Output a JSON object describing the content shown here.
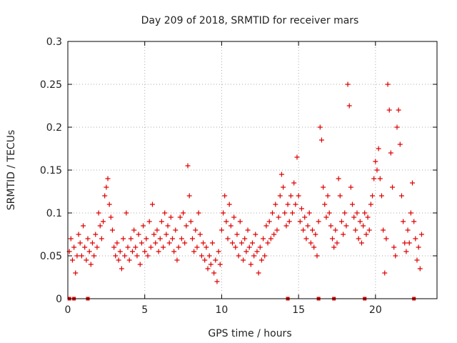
{
  "chart_data": {
    "type": "scatter",
    "title": "Day 209 of 2018, SRMTID for receiver mars",
    "xlabel": "GPS time / hours",
    "ylabel": "SRMTID / TECUs",
    "xlim": [
      0,
      24
    ],
    "ylim": [
      0,
      0.3
    ],
    "x_ticks": [
      0,
      5,
      10,
      15,
      20
    ],
    "x_tick_labels": [
      "0",
      "5",
      "10",
      "15",
      "20"
    ],
    "y_ticks": [
      0,
      0.05,
      0.1,
      0.15,
      0.2,
      0.25,
      0.3
    ],
    "y_tick_labels": [
      "0",
      "0.05",
      "0.1",
      "0.15",
      "0.2",
      "0.25",
      "0.3"
    ],
    "grid": true,
    "marker": "+",
    "series": [
      {
        "name": "SRMTID",
        "color": "#e00000",
        "points": [
          [
            0.1,
            0.055
          ],
          [
            0.2,
            0.07
          ],
          [
            0.3,
            0.045
          ],
          [
            0.4,
            0.06
          ],
          [
            0.5,
            0.03
          ],
          [
            0.6,
            0.05
          ],
          [
            0.7,
            0.075
          ],
          [
            0.8,
            0.065
          ],
          [
            0.9,
            0.05
          ],
          [
            1.0,
            0.085
          ],
          [
            1.1,
            0.06
          ],
          [
            1.2,
            0.045
          ],
          [
            1.3,
            0.07
          ],
          [
            1.4,
            0.055
          ],
          [
            1.5,
            0.04
          ],
          [
            1.6,
            0.065
          ],
          [
            1.7,
            0.05
          ],
          [
            1.8,
            0.075
          ],
          [
            1.9,
            0.06
          ],
          [
            2.0,
            0.1
          ],
          [
            2.1,
            0.085
          ],
          [
            2.2,
            0.07
          ],
          [
            2.3,
            0.09
          ],
          [
            2.4,
            0.12
          ],
          [
            2.5,
            0.13
          ],
          [
            2.6,
            0.14
          ],
          [
            2.7,
            0.11
          ],
          [
            2.8,
            0.095
          ],
          [
            2.9,
            0.08
          ],
          [
            3.0,
            0.06
          ],
          [
            3.1,
            0.05
          ],
          [
            3.2,
            0.065
          ],
          [
            3.3,
            0.045
          ],
          [
            3.4,
            0.055
          ],
          [
            3.5,
            0.035
          ],
          [
            3.6,
            0.07
          ],
          [
            3.7,
            0.05
          ],
          [
            3.8,
            0.1
          ],
          [
            3.9,
            0.06
          ],
          [
            4.0,
            0.045
          ],
          [
            4.1,
            0.07
          ],
          [
            4.2,
            0.055
          ],
          [
            4.3,
            0.08
          ],
          [
            4.4,
            0.06
          ],
          [
            4.5,
            0.05
          ],
          [
            4.6,
            0.075
          ],
          [
            4.7,
            0.04
          ],
          [
            4.8,
            0.065
          ],
          [
            4.9,
            0.085
          ],
          [
            5.0,
            0.055
          ],
          [
            5.1,
            0.07
          ],
          [
            5.2,
            0.05
          ],
          [
            5.3,
            0.09
          ],
          [
            5.4,
            0.06
          ],
          [
            5.5,
            0.11
          ],
          [
            5.6,
            0.075
          ],
          [
            5.7,
            0.065
          ],
          [
            5.8,
            0.08
          ],
          [
            5.9,
            0.055
          ],
          [
            6.0,
            0.07
          ],
          [
            6.1,
            0.09
          ],
          [
            6.2,
            0.06
          ],
          [
            6.3,
            0.1
          ],
          [
            6.4,
            0.075
          ],
          [
            6.5,
            0.085
          ],
          [
            6.6,
            0.065
          ],
          [
            6.7,
            0.095
          ],
          [
            6.8,
            0.07
          ],
          [
            6.9,
            0.055
          ],
          [
            7.0,
            0.08
          ],
          [
            7.1,
            0.045
          ],
          [
            7.2,
            0.06
          ],
          [
            7.3,
            0.095
          ],
          [
            7.4,
            0.07
          ],
          [
            7.5,
            0.1
          ],
          [
            7.6,
            0.065
          ],
          [
            7.7,
            0.085
          ],
          [
            7.8,
            0.155
          ],
          [
            7.9,
            0.12
          ],
          [
            8.0,
            0.09
          ],
          [
            8.1,
            0.07
          ],
          [
            8.2,
            0.055
          ],
          [
            8.3,
            0.08
          ],
          [
            8.4,
            0.06
          ],
          [
            8.5,
            0.1
          ],
          [
            8.6,
            0.075
          ],
          [
            8.7,
            0.05
          ],
          [
            8.8,
            0.065
          ],
          [
            8.9,
            0.045
          ],
          [
            9.0,
            0.06
          ],
          [
            9.1,
            0.035
          ],
          [
            9.2,
            0.05
          ],
          [
            9.3,
            0.04
          ],
          [
            9.4,
            0.065
          ],
          [
            9.5,
            0.03
          ],
          [
            9.6,
            0.045
          ],
          [
            9.7,
            0.02
          ],
          [
            9.8,
            0.055
          ],
          [
            9.9,
            0.04
          ],
          [
            10.0,
            0.08
          ],
          [
            10.1,
            0.1
          ],
          [
            10.2,
            0.12
          ],
          [
            10.3,
            0.09
          ],
          [
            10.4,
            0.07
          ],
          [
            10.5,
            0.11
          ],
          [
            10.6,
            0.085
          ],
          [
            10.7,
            0.065
          ],
          [
            10.8,
            0.095
          ],
          [
            10.9,
            0.06
          ],
          [
            11.0,
            0.075
          ],
          [
            11.1,
            0.05
          ],
          [
            11.2,
            0.09
          ],
          [
            11.3,
            0.065
          ],
          [
            11.4,
            0.045
          ],
          [
            11.5,
            0.07
          ],
          [
            11.6,
            0.055
          ],
          [
            11.7,
            0.08
          ],
          [
            11.8,
            0.06
          ],
          [
            11.9,
            0.04
          ],
          [
            12.0,
            0.065
          ],
          [
            12.1,
            0.05
          ],
          [
            12.2,
            0.075
          ],
          [
            12.3,
            0.055
          ],
          [
            12.4,
            0.03
          ],
          [
            12.5,
            0.06
          ],
          [
            12.6,
            0.045
          ],
          [
            12.7,
            0.07
          ],
          [
            12.8,
            0.05
          ],
          [
            12.9,
            0.085
          ],
          [
            13.0,
            0.065
          ],
          [
            13.1,
            0.09
          ],
          [
            13.2,
            0.07
          ],
          [
            13.3,
            0.1
          ],
          [
            13.4,
            0.075
          ],
          [
            13.5,
            0.11
          ],
          [
            13.6,
            0.08
          ],
          [
            13.7,
            0.095
          ],
          [
            13.8,
            0.12
          ],
          [
            13.9,
            0.145
          ],
          [
            14.0,
            0.13
          ],
          [
            14.1,
            0.1
          ],
          [
            14.2,
            0.085
          ],
          [
            14.3,
            0.11
          ],
          [
            14.4,
            0.09
          ],
          [
            14.5,
            0.12
          ],
          [
            14.6,
            0.1
          ],
          [
            14.7,
            0.135
          ],
          [
            14.8,
            0.11
          ],
          [
            14.9,
            0.165
          ],
          [
            15.0,
            0.12
          ],
          [
            15.1,
            0.09
          ],
          [
            15.2,
            0.105
          ],
          [
            15.3,
            0.08
          ],
          [
            15.4,
            0.095
          ],
          [
            15.5,
            0.07
          ],
          [
            15.6,
            0.085
          ],
          [
            15.7,
            0.1
          ],
          [
            15.8,
            0.065
          ],
          [
            15.9,
            0.08
          ],
          [
            16.0,
            0.06
          ],
          [
            16.1,
            0.075
          ],
          [
            16.2,
            0.05
          ],
          [
            16.3,
            0.09
          ],
          [
            16.4,
            0.2
          ],
          [
            16.5,
            0.185
          ],
          [
            16.6,
            0.13
          ],
          [
            16.7,
            0.11
          ],
          [
            16.8,
            0.095
          ],
          [
            16.9,
            0.12
          ],
          [
            17.0,
            0.1
          ],
          [
            17.1,
            0.085
          ],
          [
            17.2,
            0.07
          ],
          [
            17.3,
            0.06
          ],
          [
            17.4,
            0.08
          ],
          [
            17.5,
            0.065
          ],
          [
            17.6,
            0.14
          ],
          [
            17.7,
            0.12
          ],
          [
            17.8,
            0.09
          ],
          [
            17.9,
            0.075
          ],
          [
            18.0,
            0.1
          ],
          [
            18.1,
            0.085
          ],
          [
            18.2,
            0.25
          ],
          [
            18.3,
            0.225
          ],
          [
            18.4,
            0.13
          ],
          [
            18.5,
            0.11
          ],
          [
            18.6,
            0.095
          ],
          [
            18.7,
            0.08
          ],
          [
            18.8,
            0.1
          ],
          [
            18.9,
            0.07
          ],
          [
            19.0,
            0.09
          ],
          [
            19.1,
            0.065
          ],
          [
            19.2,
            0.085
          ],
          [
            19.3,
            0.1
          ],
          [
            19.4,
            0.075
          ],
          [
            19.5,
            0.095
          ],
          [
            19.6,
            0.08
          ],
          [
            19.7,
            0.11
          ],
          [
            19.8,
            0.12
          ],
          [
            19.9,
            0.14
          ],
          [
            20.0,
            0.16
          ],
          [
            20.1,
            0.15
          ],
          [
            20.2,
            0.175
          ],
          [
            20.3,
            0.14
          ],
          [
            20.4,
            0.12
          ],
          [
            20.5,
            0.08
          ],
          [
            20.6,
            0.03
          ],
          [
            20.7,
            0.07
          ],
          [
            20.8,
            0.25
          ],
          [
            20.9,
            0.22
          ],
          [
            21.0,
            0.17
          ],
          [
            21.1,
            0.13
          ],
          [
            21.2,
            0.06
          ],
          [
            21.3,
            0.05
          ],
          [
            21.4,
            0.2
          ],
          [
            21.5,
            0.22
          ],
          [
            21.6,
            0.18
          ],
          [
            21.7,
            0.12
          ],
          [
            21.8,
            0.09
          ],
          [
            21.9,
            0.065
          ],
          [
            22.0,
            0.055
          ],
          [
            22.1,
            0.08
          ],
          [
            22.2,
            0.065
          ],
          [
            22.3,
            0.1
          ],
          [
            22.4,
            0.135
          ],
          [
            22.5,
            0.09
          ],
          [
            22.6,
            0.07
          ],
          [
            22.7,
            0.045
          ],
          [
            22.8,
            0.06
          ],
          [
            22.9,
            0.035
          ],
          [
            23.0,
            0.075
          ]
        ]
      }
    ],
    "zero_markers_x": [
      0.1,
      0.4,
      1.3,
      14.3,
      16.3,
      17.3,
      19.3,
      22.5
    ]
  }
}
